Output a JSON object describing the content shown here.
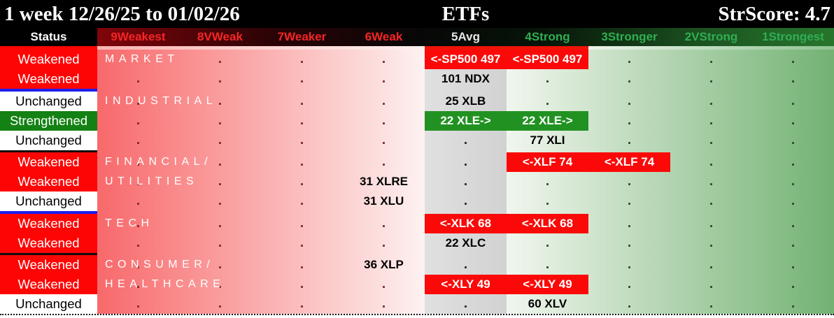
{
  "title_bar": {
    "left": "1 week 12/26/25 to 01/02/26",
    "center": "ETFs",
    "right": "StrScore: 4.7"
  },
  "columns": [
    {
      "key": "status",
      "label": "Status",
      "tone": "status"
    },
    {
      "key": "c9",
      "label": "9Weakest",
      "tone": "weak"
    },
    {
      "key": "c8",
      "label": "8VWeak",
      "tone": "weak"
    },
    {
      "key": "c7",
      "label": "7Weaker",
      "tone": "weak"
    },
    {
      "key": "c6",
      "label": "6Weak",
      "tone": "weak"
    },
    {
      "key": "c5",
      "label": "5Avg",
      "tone": "avg"
    },
    {
      "key": "c4",
      "label": "4Strong",
      "tone": "strong"
    },
    {
      "key": "c3",
      "label": "3Stronger",
      "tone": "strong"
    },
    {
      "key": "c2",
      "label": "2VStrong",
      "tone": "strong"
    },
    {
      "key": "c1",
      "label": "1Strongest",
      "tone": "strong"
    }
  ],
  "rows": [
    {
      "status": "Weakened",
      "status_type": "weakened",
      "category": "MARKET",
      "cells": {
        "c8": ".",
        "c7": ".",
        "c6": ".",
        "c5": {
          "v": "<-SP500 497",
          "s": "red"
        },
        "c4": {
          "v": "<-SP500 497",
          "s": "red"
        },
        "c3": ".",
        "c2": ".",
        "c1": "."
      }
    },
    {
      "status": "Weakened",
      "status_type": "weakened",
      "cells": {
        "c9": ".",
        "c8": ".",
        "c7": ".",
        "c6": ".",
        "c5": {
          "v": "101 NDX",
          "s": "plain"
        },
        "c4": ".",
        "c3": ".",
        "c2": ".",
        "c1": "."
      },
      "sep_after": "blue"
    },
    {
      "status": "Unchanged",
      "status_type": "unchanged",
      "category": "INDUSTRIAL",
      "cells": {
        "c9": ".",
        "c8": ".",
        "c7": ".",
        "c6": ".",
        "c5": {
          "v": "25 XLB",
          "s": "plain"
        },
        "c4": ".",
        "c3": ".",
        "c2": ".",
        "c1": "."
      }
    },
    {
      "status": "Strengthened",
      "status_type": "strengthened",
      "cells": {
        "c9": ".",
        "c8": ".",
        "c7": ".",
        "c6": ".",
        "c5": {
          "v": "22 XLE->",
          "s": "green"
        },
        "c4": {
          "v": "22 XLE->",
          "s": "green"
        },
        "c3": ".",
        "c2": ".",
        "c1": "."
      }
    },
    {
      "status": "Unchanged",
      "status_type": "unchanged",
      "cells": {
        "c9": ".",
        "c8": ".",
        "c7": ".",
        "c6": ".",
        "c5": ".",
        "c4": {
          "v": "77 XLI",
          "s": "plain"
        },
        "c3": ".",
        "c2": ".",
        "c1": "."
      },
      "sep_after": "black"
    },
    {
      "status": "Weakened",
      "status_type": "weakened",
      "category": "FINANCIAL/",
      "cells": {
        "c9": ".",
        "c8": ".",
        "c7": ".",
        "c6": ".",
        "c5": ".",
        "c4": {
          "v": "<-XLF 74",
          "s": "red"
        },
        "c3": {
          "v": "<-XLF 74",
          "s": "red"
        },
        "c2": ".",
        "c1": "."
      }
    },
    {
      "status": "Weakened",
      "status_type": "weakened",
      "category": "UTILITIES",
      "cells": {
        "c9": ".",
        "c8": ".",
        "c7": ".",
        "c6": {
          "v": "31 XLRE",
          "s": "plain"
        },
        "c5": ".",
        "c4": ".",
        "c3": ".",
        "c2": ".",
        "c1": "."
      }
    },
    {
      "status": "Unchanged",
      "status_type": "unchanged",
      "cells": {
        "c9": ".",
        "c8": ".",
        "c7": ".",
        "c6": {
          "v": "31 XLU",
          "s": "plain"
        },
        "c5": ".",
        "c4": ".",
        "c3": ".",
        "c2": ".",
        "c1": "."
      },
      "sep_after": "blue"
    },
    {
      "status": "Weakened",
      "status_type": "weakened",
      "category": "TECH",
      "cells": {
        "c9": ".",
        "c8": ".",
        "c7": ".",
        "c6": ".",
        "c5": {
          "v": "<-XLK 68",
          "s": "red"
        },
        "c4": {
          "v": "<-XLK 68",
          "s": "red"
        },
        "c3": ".",
        "c2": ".",
        "c1": "."
      }
    },
    {
      "status": "Weakened",
      "status_type": "weakened",
      "cells": {
        "c9": ".",
        "c8": ".",
        "c7": ".",
        "c6": ".",
        "c5": {
          "v": "22 XLC",
          "s": "plain"
        },
        "c4": ".",
        "c3": ".",
        "c2": ".",
        "c1": "."
      },
      "sep_after": "black"
    },
    {
      "status": "Weakened",
      "status_type": "weakened",
      "category": "CONSUMER/",
      "cells": {
        "c9": ".",
        "c8": ".",
        "c7": ".",
        "c6": {
          "v": "36 XLP",
          "s": "plain"
        },
        "c5": ".",
        "c4": ".",
        "c3": ".",
        "c2": ".",
        "c1": "."
      }
    },
    {
      "status": "Weakened",
      "status_type": "weakened",
      "category": "HEALTHCARE",
      "cells": {
        "c9": ".",
        "c8": ".",
        "c7": ".",
        "c6": ".",
        "c5": {
          "v": "<-XLY 49",
          "s": "red"
        },
        "c4": {
          "v": "<-XLY 49",
          "s": "red"
        },
        "c3": ".",
        "c2": ".",
        "c1": "."
      }
    },
    {
      "status": "Unchanged",
      "status_type": "unchanged",
      "cells": {
        "c9": ".",
        "c8": ".",
        "c7": ".",
        "c6": ".",
        "c5": ".",
        "c4": {
          "v": "60 XLV",
          "s": "plain"
        },
        "c3": ".",
        "c2": ".",
        "c1": "."
      }
    }
  ],
  "colors": {
    "status_weakened": "#fe0505",
    "status_unchanged": "#ffffff",
    "status_strengthened": "#138113",
    "highlight_red": "#fb0909",
    "highlight_green": "#219222",
    "avg_column_gray": "#d9d9d9",
    "separator_blue": "#1d1df0",
    "separator_black": "#0d0d0d",
    "header_weak_text": "#f62525",
    "header_avg_text": "#e6e6e6",
    "header_strong_text": "#2fae52"
  }
}
